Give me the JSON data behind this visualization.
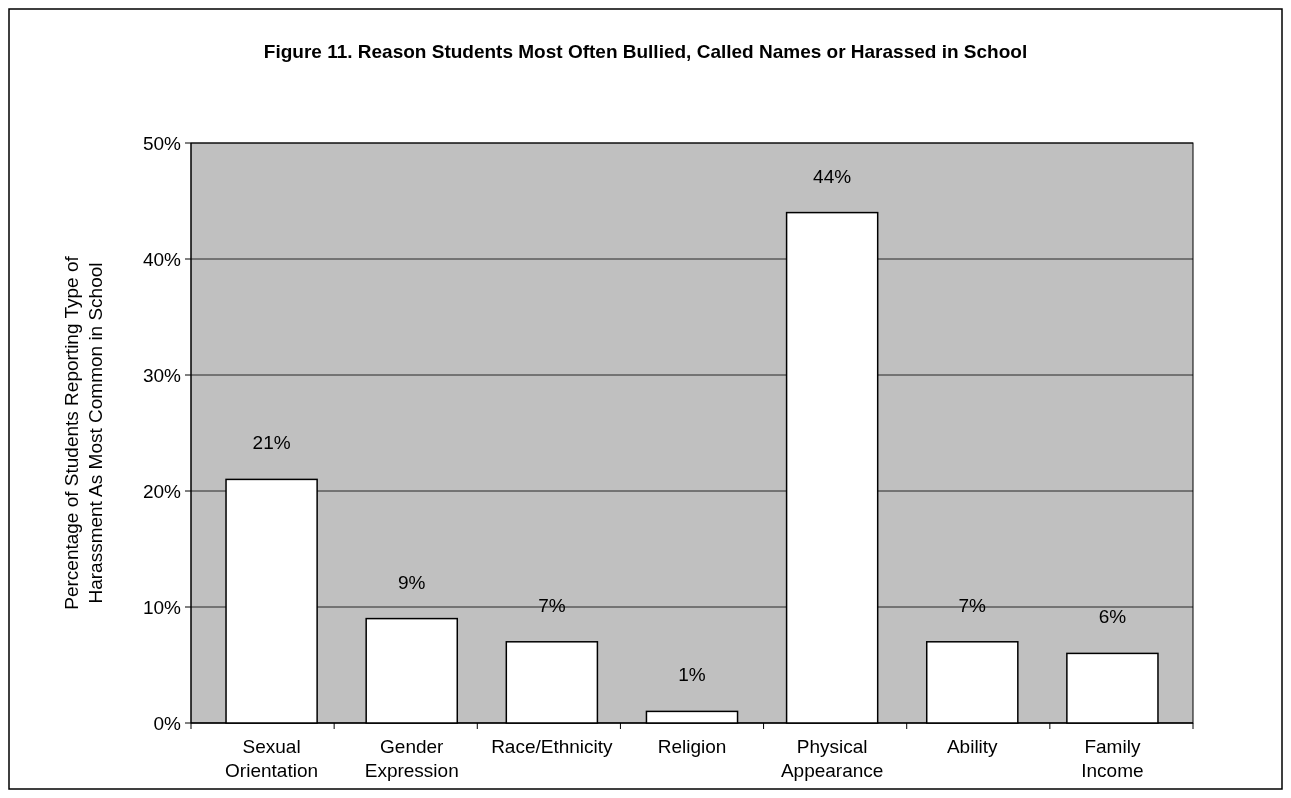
{
  "chart_data": {
    "type": "bar",
    "title": "Figure 11. Reason Students Most Often Bullied, Called Names or Harassed in School",
    "ylabel": "Percentage of Students Reporting Type of\nHarassment As Most Common in School",
    "categories": [
      "Sexual Orientation",
      "Gender Expression",
      "Race/Ethnicity",
      "Religion",
      "Physical Appearance",
      "Ability",
      "Family Income"
    ],
    "values": [
      21,
      9,
      7,
      1,
      44,
      7,
      6
    ],
    "color": "#ffffff",
    "ylim": [
      0,
      50
    ],
    "yticks": [
      {
        "value": 0,
        "label": "0%"
      },
      {
        "value": 10,
        "label": "10%"
      },
      {
        "value": 20,
        "label": "20%"
      },
      {
        "value": 30,
        "label": "30%"
      },
      {
        "value": 40,
        "label": "40%"
      },
      {
        "value": 50,
        "label": "50%"
      }
    ],
    "value_labels": [
      "21%",
      "9%",
      "7%",
      "1%",
      "44%",
      "7%",
      "6%"
    ],
    "grid": "y"
  }
}
